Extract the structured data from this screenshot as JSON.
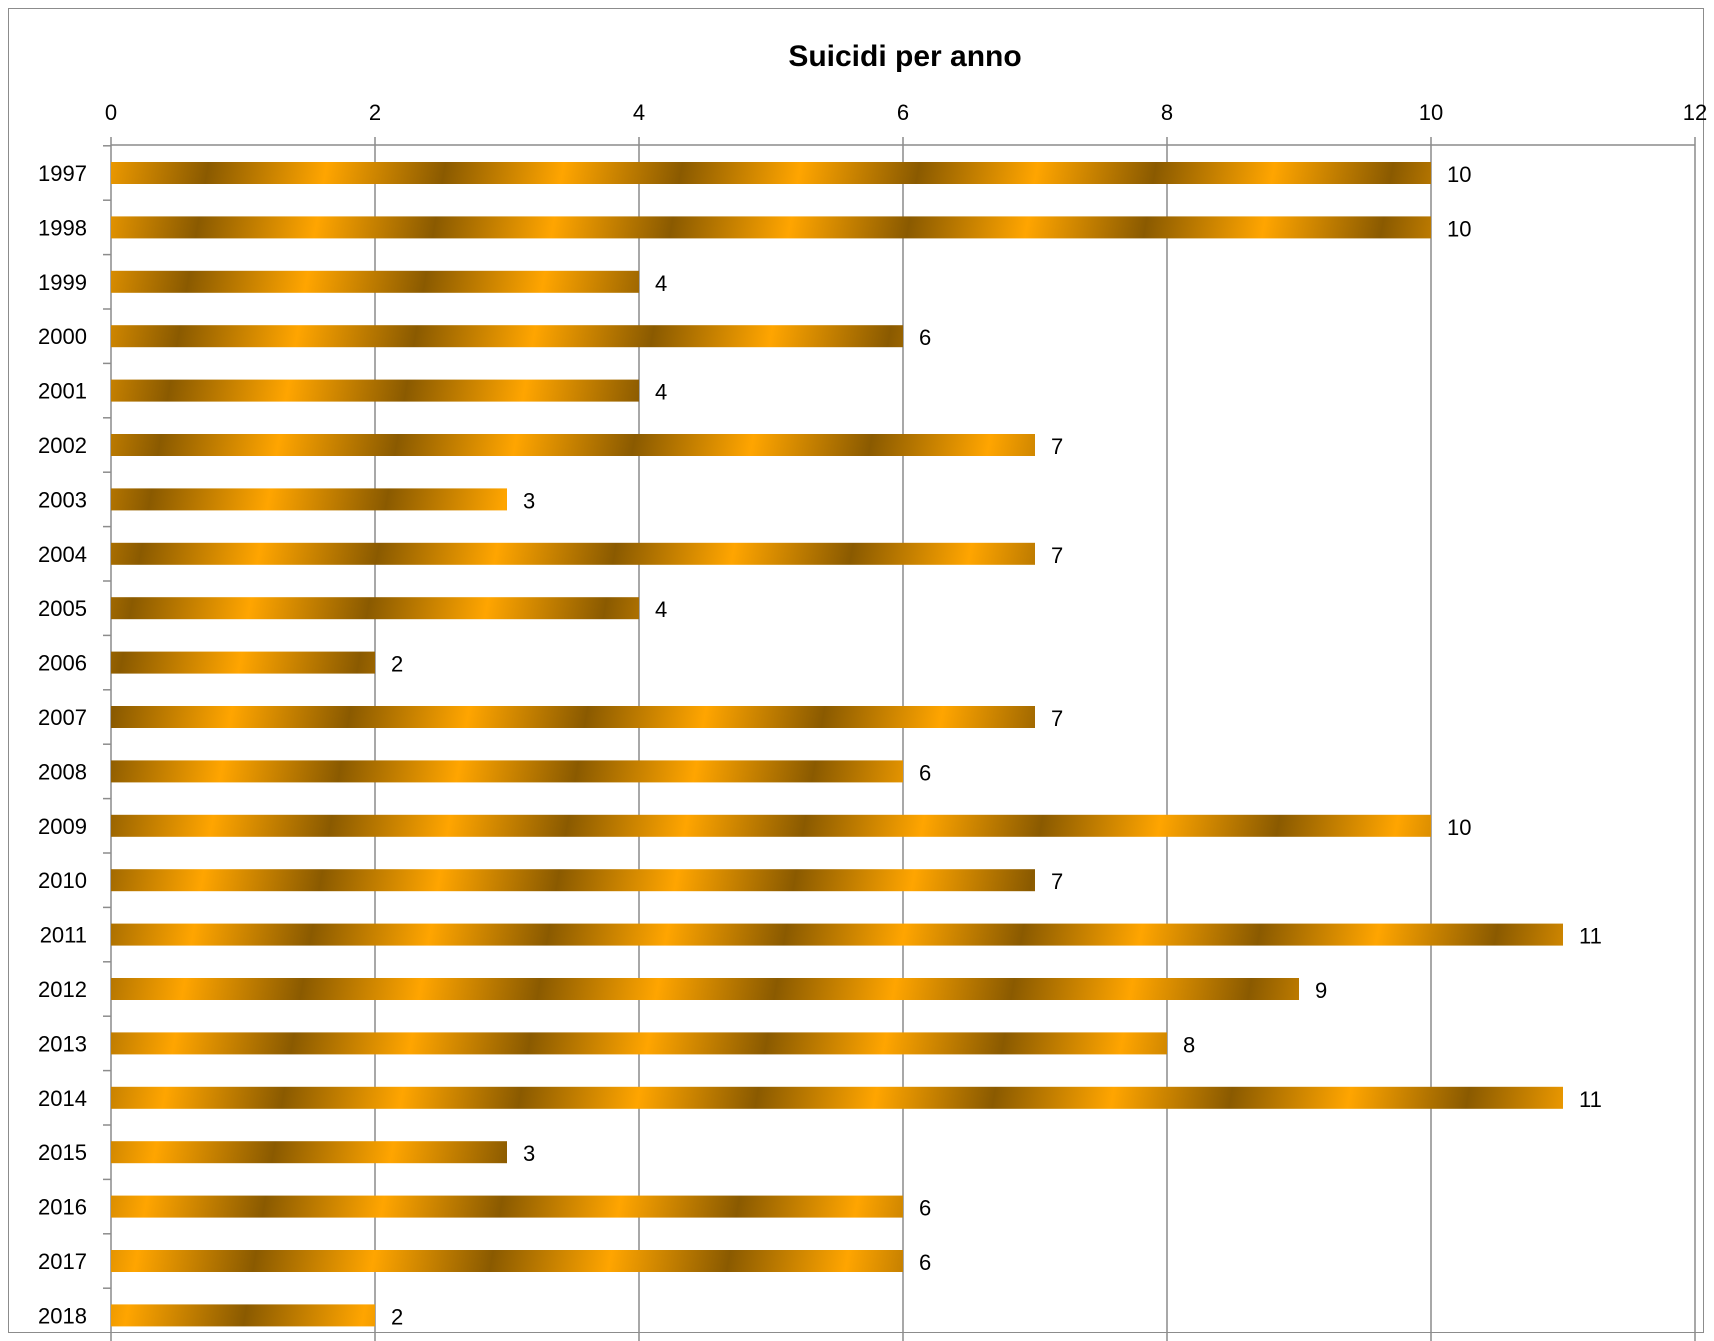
{
  "chart_data": {
    "type": "bar",
    "orientation": "horizontal",
    "title": "Suicidi per anno",
    "xlabel": "",
    "ylabel": "",
    "categories": [
      "1997",
      "1998",
      "1999",
      "2000",
      "2001",
      "2002",
      "2003",
      "2004",
      "2005",
      "2006",
      "2007",
      "2008",
      "2009",
      "2010",
      "2011",
      "2012",
      "2013",
      "2014",
      "2015",
      "2016",
      "2017",
      "2018"
    ],
    "values": [
      10,
      10,
      4,
      6,
      4,
      7,
      3,
      7,
      4,
      2,
      7,
      6,
      10,
      7,
      11,
      9,
      8,
      11,
      3,
      6,
      6,
      2
    ],
    "xlim": [
      0,
      12
    ],
    "ticks": [
      "0",
      "2",
      "4",
      "6",
      "8",
      "10",
      "12"
    ],
    "axis_position": "top",
    "grid": true,
    "legend": "none",
    "colors": {
      "bar_light": "#ffa500",
      "bar_dark": "#8a5a00",
      "grid": "#8c8c8c"
    }
  }
}
